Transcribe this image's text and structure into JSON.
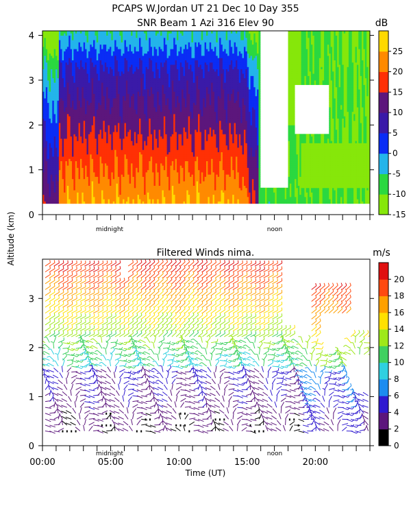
{
  "header": {
    "title_line1": "PCAPS W.Jordan UT  21 Dec 10 Day 355",
    "title_line2": "SNR Beam 1 Azi 316 Elev 90"
  },
  "shared": {
    "ylabel": "Altitude (km)",
    "xlabel": "Time (UT)",
    "marker_midnight": "midnight",
    "marker_noon": "noon"
  },
  "chart_data": [
    {
      "type": "heatmap",
      "title": "SNR Beam 1 Azi 316 Elev 90",
      "ylabel": "Altitude (km)",
      "ylim": [
        0,
        4.1
      ],
      "xlim_hours": [
        0,
        24
      ],
      "y_ticks": [
        0,
        1,
        2,
        3,
        4
      ],
      "x_ticks": [],
      "colorbar": {
        "unit": "dB",
        "ticks": [
          25,
          20,
          15,
          10,
          5,
          0,
          -5,
          -10,
          -15
        ],
        "levels": [
          {
            "min": -15,
            "max": -10,
            "color": "#86e70a"
          },
          {
            "min": -10,
            "max": -5,
            "color": "#2bd840"
          },
          {
            "min": -5,
            "max": 0,
            "color": "#23b4ea"
          },
          {
            "min": 0,
            "max": 5,
            "color": "#0a2df5"
          },
          {
            "min": 5,
            "max": 10,
            "color": "#3a1aa8"
          },
          {
            "min": 10,
            "max": 15,
            "color": "#5c167c"
          },
          {
            "min": 15,
            "max": 20,
            "color": "#ff3005"
          },
          {
            "min": 20,
            "max": 25,
            "color": "#ff8a00"
          },
          {
            "min": 25,
            "max": 30,
            "color": "#ffd900"
          }
        ]
      }
    },
    {
      "type": "barbs",
      "title": "Filtered Winds nima.",
      "ylabel": "Altitude (km)",
      "xlabel": "Time (UT)",
      "ylim": [
        0,
        3.8
      ],
      "xlim_hours": [
        0,
        24
      ],
      "y_ticks": [
        0,
        1,
        2,
        3
      ],
      "x_ticks": [
        "00:00",
        "05:00",
        "10:00",
        "15:00",
        "20:00"
      ],
      "colorbar": {
        "unit": "m/s",
        "ticks": [
          20,
          18,
          16,
          14,
          12,
          10,
          8,
          6,
          4,
          2,
          0
        ],
        "levels": [
          {
            "min": 0,
            "max": 2,
            "color": "#000000"
          },
          {
            "min": 2,
            "max": 4,
            "color": "#5c167c"
          },
          {
            "min": 4,
            "max": 6,
            "color": "#2f1ad0"
          },
          {
            "min": 6,
            "max": 8,
            "color": "#1c8cf0"
          },
          {
            "min": 8,
            "max": 10,
            "color": "#2fd0e0"
          },
          {
            "min": 10,
            "max": 12,
            "color": "#3fd060"
          },
          {
            "min": 12,
            "max": 14,
            "color": "#9ee81a"
          },
          {
            "min": 14,
            "max": 16,
            "color": "#ffe000"
          },
          {
            "min": 16,
            "max": 18,
            "color": "#ffa000"
          },
          {
            "min": 18,
            "max": 20,
            "color": "#ff4a10"
          },
          {
            "min": 20,
            "max": 22,
            "color": "#e01010"
          }
        ]
      }
    }
  ]
}
